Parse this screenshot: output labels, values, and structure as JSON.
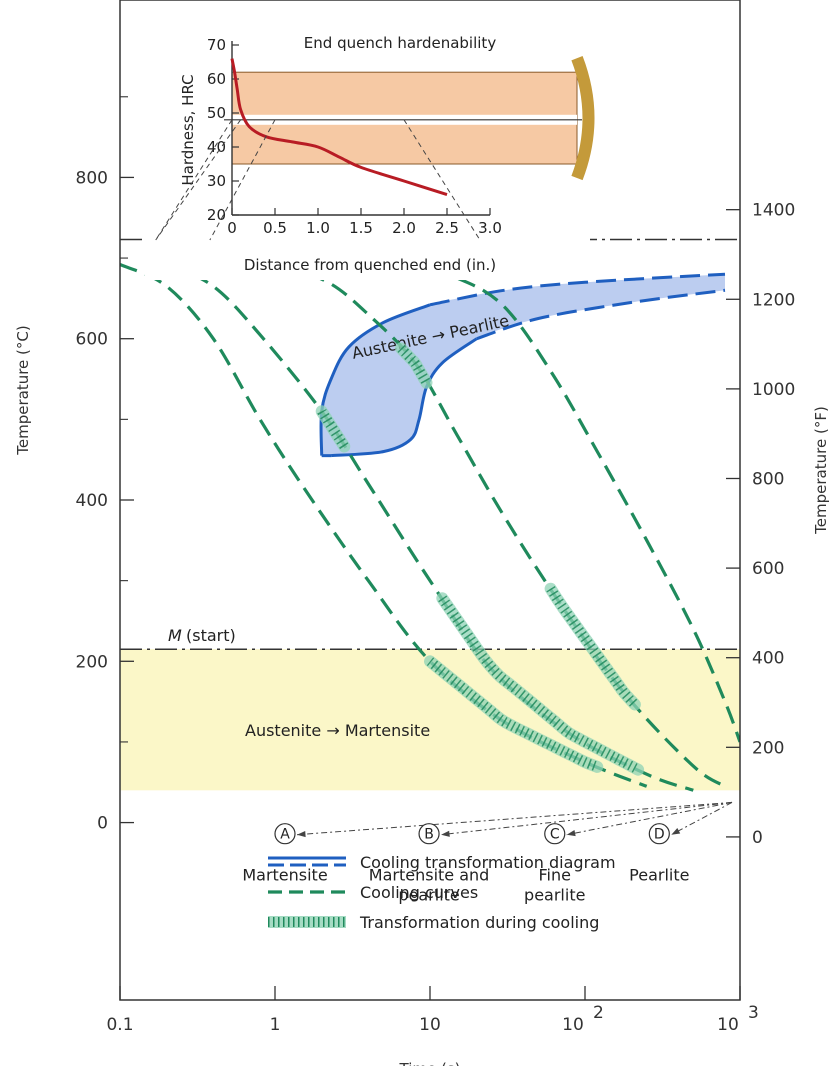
{
  "chart_data": {
    "type": "line",
    "x_scale": "log",
    "xlim": [
      0.1,
      1000
    ],
    "ylim": [
      -220,
      1020
    ],
    "x_ticks": [
      {
        "value": 0.1,
        "label": "0.1"
      },
      {
        "value": 1,
        "label": "1"
      },
      {
        "value": 10,
        "label": "10"
      },
      {
        "value": 100,
        "label": "10",
        "sup": "2"
      },
      {
        "value": 1000,
        "label": "10",
        "sup": "3"
      }
    ],
    "xlabel": "Time (s)",
    "ylabel_left": "Temperature (°C)",
    "ylabel_right": "Temperature (°F)",
    "y_ticks_left": [
      {
        "value": 0,
        "label": "0"
      },
      {
        "value": 200,
        "label": "200"
      },
      {
        "value": 400,
        "label": "400"
      },
      {
        "value": 600,
        "label": "600"
      },
      {
        "value": 800,
        "label": "800"
      }
    ],
    "y_ticks_right": [
      {
        "value": 0,
        "label": "0"
      },
      {
        "value": 200,
        "label": "200"
      },
      {
        "value": 400,
        "label": "400"
      },
      {
        "value": 600,
        "label": "600"
      },
      {
        "value": 800,
        "label": "800"
      },
      {
        "value": 1000,
        "label": "1000"
      },
      {
        "value": 1200,
        "label": "1200"
      },
      {
        "value": 1400,
        "label": "1400"
      }
    ],
    "eutectoid_temp": 723,
    "ms_temp": 215,
    "ms_label": "M",
    "ms_label_suffix": "(start)",
    "martensite_band": {
      "from": 40,
      "to": 215,
      "label": "Austenite → Martensite",
      "color": "#fbf7c8"
    },
    "pearlite_region": {
      "label": "Austenite → Pearlite",
      "fill": "#b5c8ee",
      "stroke": "#1f5fc0",
      "start_curve": [
        [
          2.0,
          455
        ],
        [
          2.0,
          510
        ],
        [
          2.3,
          550
        ],
        [
          3.0,
          590
        ],
        [
          5,
          620
        ],
        [
          10,
          642
        ],
        [
          30,
          660
        ],
        [
          100,
          670
        ],
        [
          800,
          680
        ]
      ],
      "finish_curve": [
        [
          2.3,
          455
        ],
        [
          5,
          460
        ],
        [
          7.5,
          475
        ],
        [
          8.5,
          500
        ],
        [
          9.5,
          540
        ],
        [
          12,
          570
        ],
        [
          20,
          600
        ],
        [
          50,
          625
        ],
        [
          200,
          645
        ],
        [
          800,
          660
        ]
      ]
    },
    "cooling_curves": [
      {
        "name": "A",
        "points": [
          [
            0.1,
            692
          ],
          [
            0.2,
            665
          ],
          [
            0.4,
            600
          ],
          [
            0.8,
            500
          ],
          [
            1.6,
            410
          ],
          [
            4,
            300
          ],
          [
            10,
            200
          ],
          [
            30,
            125
          ],
          [
            100,
            75
          ],
          [
            250,
            45
          ]
        ]
      },
      {
        "name": "B",
        "points": [
          [
            0.2,
            692
          ],
          [
            0.4,
            665
          ],
          [
            0.8,
            605
          ],
          [
            2,
            510
          ],
          [
            4,
            420
          ],
          [
            10,
            300
          ],
          [
            25,
            190
          ],
          [
            80,
            110
          ],
          [
            250,
            60
          ],
          [
            500,
            40
          ]
        ]
      },
      {
        "name": "C",
        "points": [
          [
            1.1,
            690
          ],
          [
            2.2,
            670
          ],
          [
            4,
            630
          ],
          [
            8,
            570
          ],
          [
            15,
            480
          ],
          [
            30,
            380
          ],
          [
            70,
            270
          ],
          [
            180,
            160
          ],
          [
            500,
            70
          ],
          [
            800,
            45
          ]
        ]
      },
      {
        "name": "D",
        "points": [
          [
            7,
            690
          ],
          [
            15,
            675
          ],
          [
            30,
            640
          ],
          [
            60,
            560
          ],
          [
            120,
            460
          ],
          [
            250,
            350
          ],
          [
            500,
            240
          ],
          [
            800,
            150
          ],
          [
            1000,
            100
          ]
        ]
      }
    ],
    "transformation_segments": [
      {
        "curve": "A",
        "from_x": 10,
        "to_x": 120
      },
      {
        "curve": "B",
        "from_x": 2.0,
        "to_x": 2.8
      },
      {
        "curve": "B",
        "from_x": 12,
        "to_x": 220
      },
      {
        "curve": "C",
        "from_x": 6.5,
        "to_x": 9.5
      },
      {
        "curve": "C",
        "from_x": 60,
        "to_x": 210
      }
    ],
    "curve_markers": [
      {
        "name": "A",
        "x": 0.17,
        "y": 710
      },
      {
        "name": "B",
        "x": 0.38,
        "y": 710
      },
      {
        "name": "C",
        "x": 3.5,
        "y": 710
      },
      {
        "name": "D",
        "x": 21,
        "y": 710
      }
    ],
    "product_labels": [
      {
        "name": "A",
        "x": 1.0,
        "y": -20,
        "lines": [
          "Martensite"
        ]
      },
      {
        "name": "B",
        "x": 8.5,
        "y": -20,
        "lines": [
          "Martensite and",
          "pearlite"
        ]
      },
      {
        "name": "C",
        "x": 55,
        "y": -20,
        "lines": [
          "Fine",
          "pearlite"
        ]
      },
      {
        "name": "D",
        "x": 260,
        "y": -20,
        "lines": [
          "Pearlite"
        ]
      }
    ],
    "product_arrow_origin": {
      "x": 1000,
      "y": 25
    },
    "colors": {
      "cooling": "#1f8a5c",
      "ctd": "#1f5fc0",
      "inset_curve": "#b81c24",
      "bar_fill": "#f6c9a4",
      "bar_edge": "#c49a3a"
    },
    "legend": [
      {
        "style": "ctd",
        "label": "Cooling transformation diagram"
      },
      {
        "style": "cooling",
        "label": "Cooling curves"
      },
      {
        "style": "transformation",
        "label": "Transformation during cooling"
      }
    ],
    "inset": {
      "title": "End quench hardenability",
      "xlabel": "Distance from quenched end (in.)",
      "ylabel": "Hardness, HRC",
      "xlim": [
        0,
        3.0
      ],
      "ylim": [
        20,
        70
      ],
      "x_ticks": [
        {
          "value": 0,
          "label": "0"
        },
        {
          "value": 0.5,
          "label": "0.5"
        },
        {
          "value": 1.0,
          "label": "1.0"
        },
        {
          "value": 1.5,
          "label": "1.5"
        },
        {
          "value": 2.0,
          "label": "2.0"
        },
        {
          "value": 2.5,
          "label": "2.5"
        },
        {
          "value": 3.0,
          "label": "3.0"
        }
      ],
      "y_ticks": [
        {
          "value": 20,
          "label": "20"
        },
        {
          "value": 30,
          "label": "30"
        },
        {
          "value": 40,
          "label": "40"
        },
        {
          "value": 50,
          "label": "50"
        },
        {
          "value": 60,
          "label": "60"
        },
        {
          "value": 70,
          "label": "70"
        }
      ],
      "hardness_curve": [
        [
          0,
          66
        ],
        [
          0.03,
          62
        ],
        [
          0.06,
          57
        ],
        [
          0.1,
          51
        ],
        [
          0.2,
          46
        ],
        [
          0.4,
          43
        ],
        [
          0.7,
          41.5
        ],
        [
          1.0,
          40
        ],
        [
          1.25,
          37
        ],
        [
          1.5,
          34
        ],
        [
          2.0,
          30
        ],
        [
          2.5,
          26
        ]
      ],
      "bar_hrc_range": [
        35,
        62
      ],
      "bar_center_hrc": 48
    }
  }
}
